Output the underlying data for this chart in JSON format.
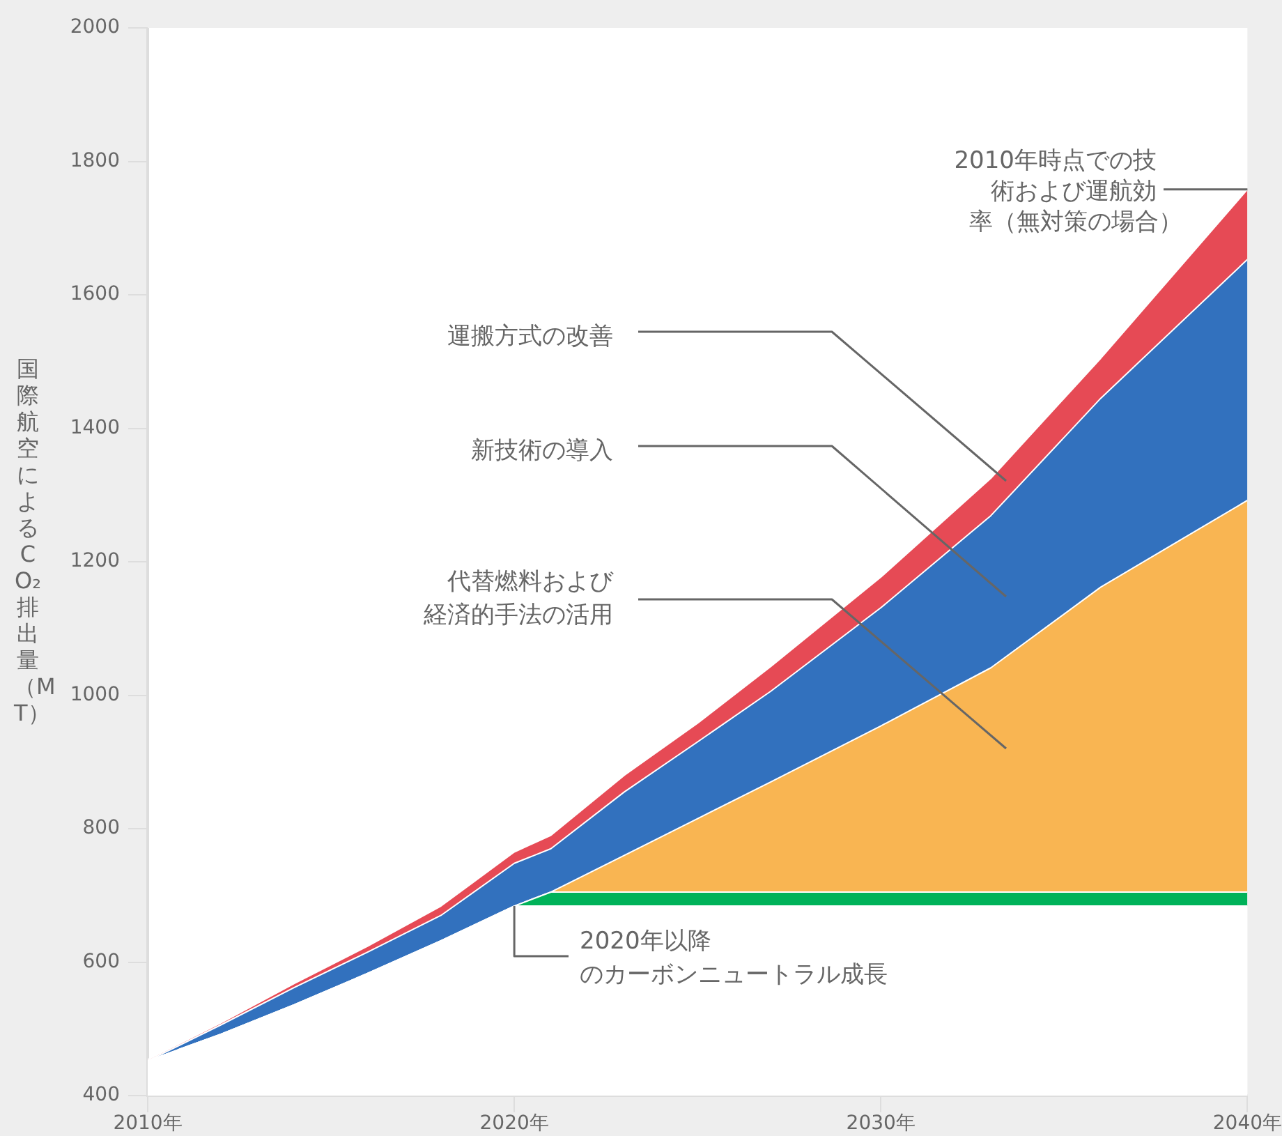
{
  "chart_data": {
    "type": "area",
    "ylabel": "国際航空によるCO₂排出量（MT）",
    "x": [
      2010,
      2012,
      2014,
      2016,
      2018,
      2020,
      2021,
      2023,
      2025,
      2027,
      2030,
      2033,
      2036,
      2040
    ],
    "xlim": [
      2010,
      2040
    ],
    "xticks": [
      {
        "value": 2010,
        "label": "2010年"
      },
      {
        "value": 2020,
        "label": "2020年"
      },
      {
        "value": 2030,
        "label": "2030年"
      },
      {
        "value": 2040,
        "label": "2040年"
      }
    ],
    "ylim": [
      400,
      2000
    ],
    "yticks": [
      400,
      600,
      800,
      1000,
      1200,
      1400,
      1600,
      1800,
      2000
    ],
    "series": [
      {
        "color": "#ffffff",
        "values": [
          452,
          492,
          536,
          583,
          632,
          684,
          684,
          684,
          684,
          684,
          684,
          684,
          684,
          684
        ]
      },
      {
        "color": "#00b259",
        "values": [
          452,
          492,
          536,
          583,
          632,
          684,
          705,
          705,
          705,
          705,
          705,
          705,
          705,
          705
        ]
      },
      {
        "color": "#f9b552",
        "values": [
          452,
          492,
          536,
          583,
          632,
          684,
          705,
          760,
          815,
          870,
          954,
          1041,
          1162,
          1292
        ]
      },
      {
        "color": "#3271be",
        "values": [
          452,
          506,
          562,
          615,
          670,
          748,
          770,
          855,
          930,
          1006,
          1131,
          1269,
          1445,
          1653
        ]
      },
      {
        "color": "#e64a55",
        "values": [
          454,
          509,
          568,
          624,
          684,
          765,
          790,
          880,
          958,
          1043,
          1177,
          1325,
          1505,
          1758
        ]
      }
    ],
    "annotations": [
      {
        "text": "2010年時点での技術および運航効率（無対策の場合）",
        "x": 2040,
        "y": 1758
      },
      "運搬方式の改善",
      "新技術の導入",
      "代替燃料および経済的手法の活用",
      {
        "text": "2020年以降のカーボンニュートラル成長",
        "x": 2020,
        "y": 684
      }
    ],
    "grid": false,
    "legend": false
  }
}
